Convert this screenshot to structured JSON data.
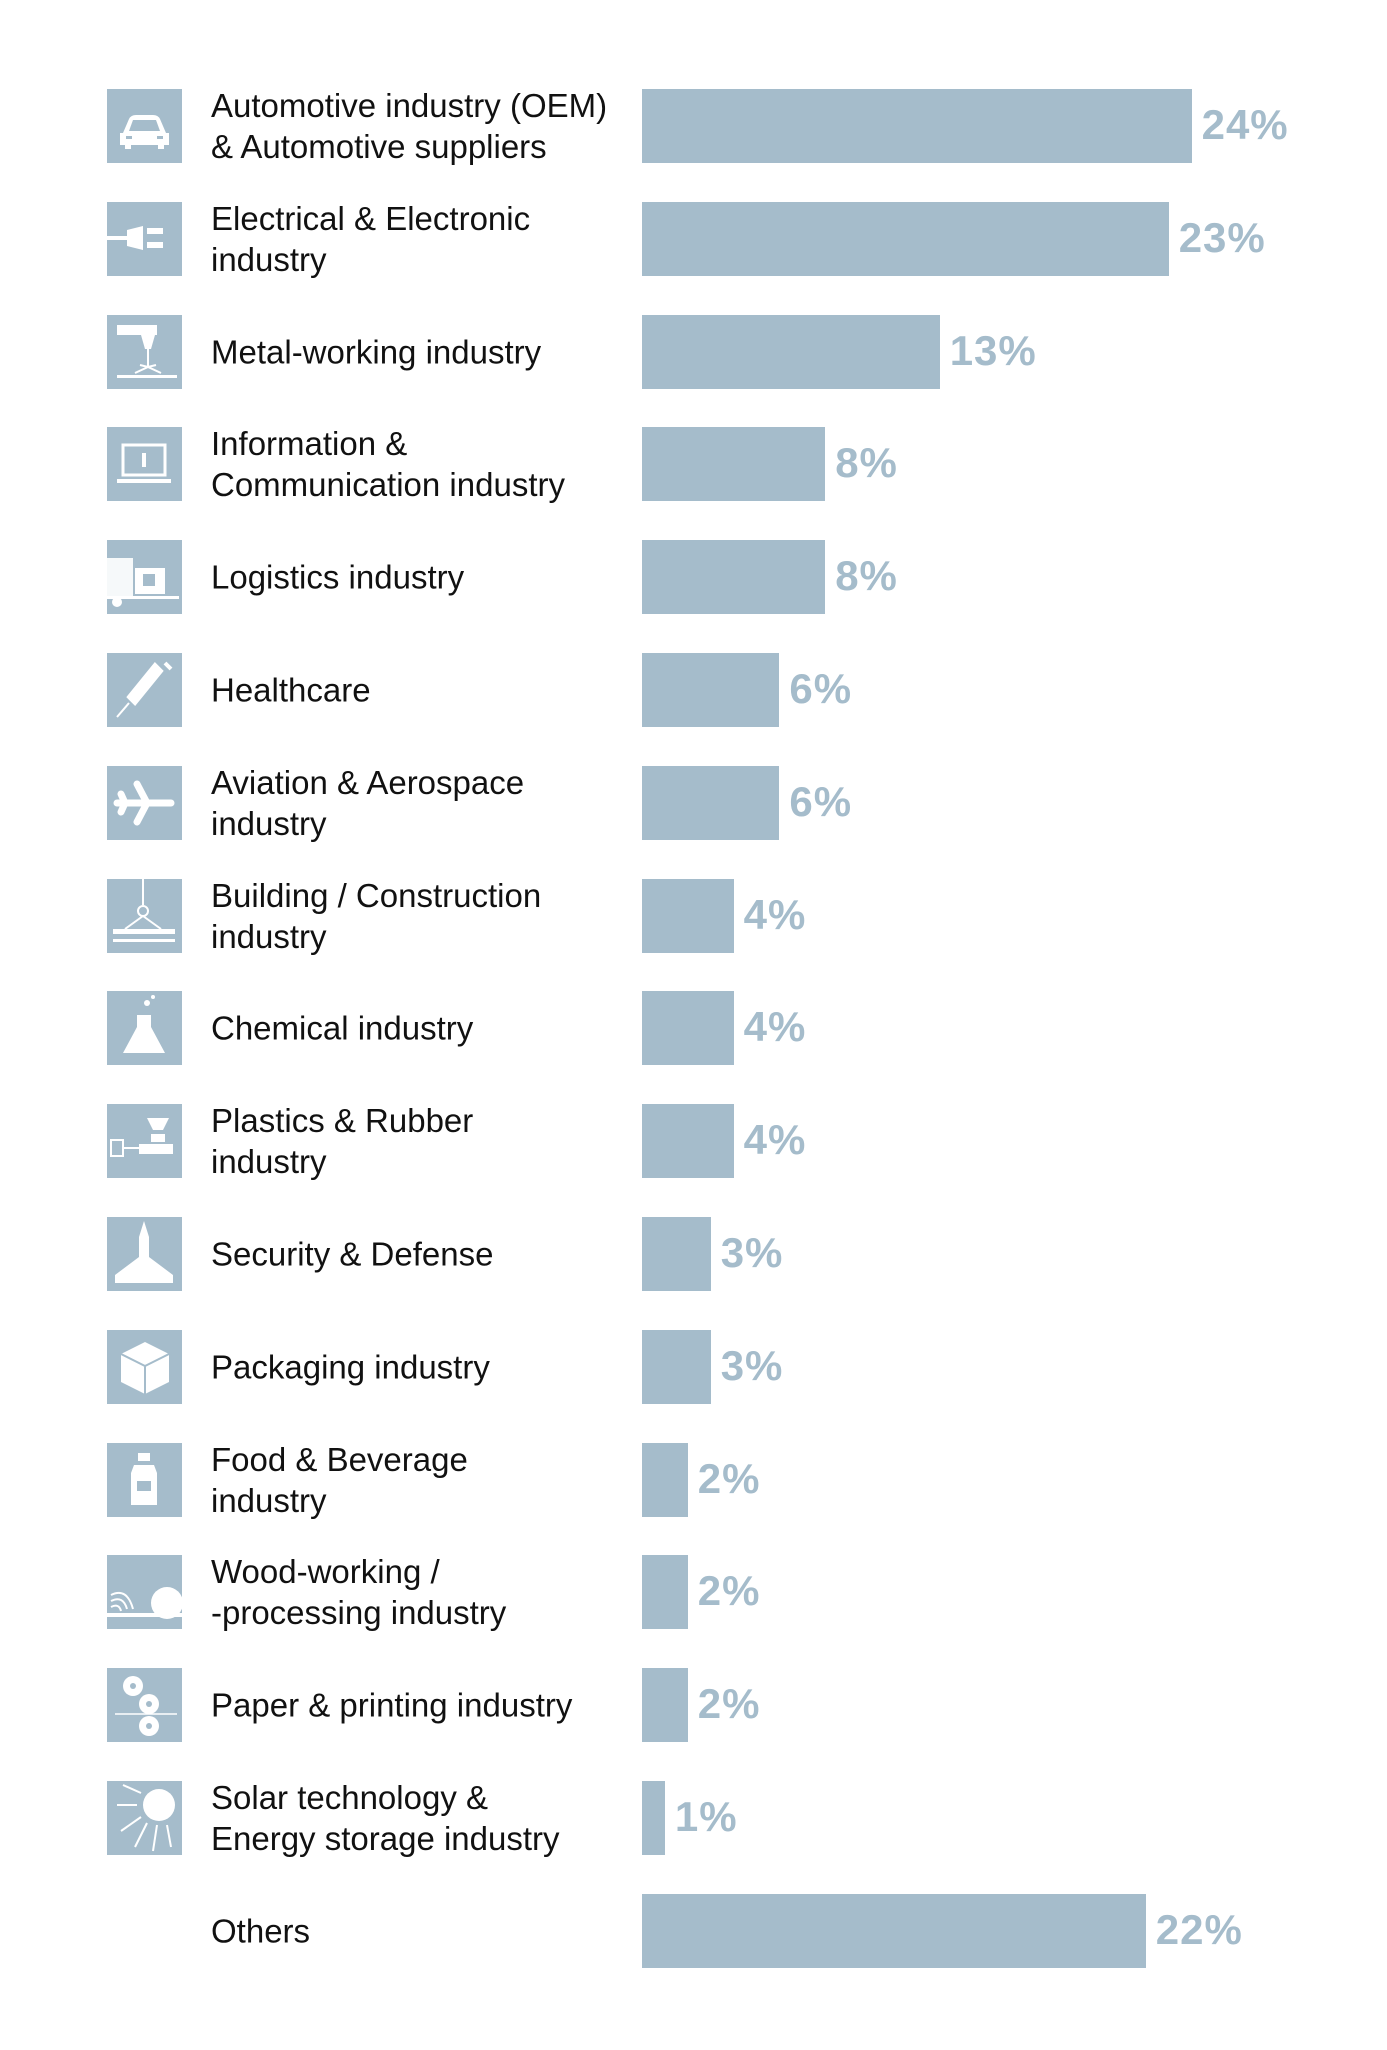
{
  "chart_data": {
    "type": "bar",
    "orientation": "horizontal",
    "bar_color": "#a5bccb",
    "icon_bg_color": "#a5bccb",
    "value_suffix": "%",
    "grid": false,
    "categories": [
      "Automotive industry (OEM)\n& Automotive suppliers",
      "Electrical & Electronic\nindustry",
      "Metal-working industry",
      "Information &\nCommunication industry",
      "Logistics industry",
      "Healthcare",
      "Aviation & Aerospace\nindustry",
      "Building / Construction\nindustry",
      "Chemical industry",
      "Plastics & Rubber\nindustry",
      "Security & Defense",
      "Packaging industry",
      "Food & Beverage\nindustry",
      "Wood-working /\n-processing industry",
      "Paper & printing industry",
      "Solar technology &\nEnergy storage industry",
      "Others"
    ],
    "values": [
      24,
      23,
      13,
      8,
      8,
      6,
      6,
      4,
      4,
      4,
      3,
      3,
      2,
      2,
      2,
      1,
      22
    ],
    "value_labels": [
      "24%",
      "23%",
      "13%",
      "8%",
      "8%",
      "6%",
      "6%",
      "4%",
      "4%",
      "4%",
      "3%",
      "3%",
      "2%",
      "2%",
      "2%",
      "1%",
      "22%"
    ],
    "icons": [
      "car-icon",
      "plug-icon",
      "laser-cutter-icon",
      "laptop-info-icon",
      "truck-icon",
      "syringe-icon",
      "airplane-icon",
      "crane-icon",
      "flask-icon",
      "injection-molding-icon",
      "fighter-jet-icon",
      "box-icon",
      "bottle-icon",
      "saw-blade-icon",
      "paper-rolls-icon",
      "sun-icon",
      ""
    ]
  }
}
